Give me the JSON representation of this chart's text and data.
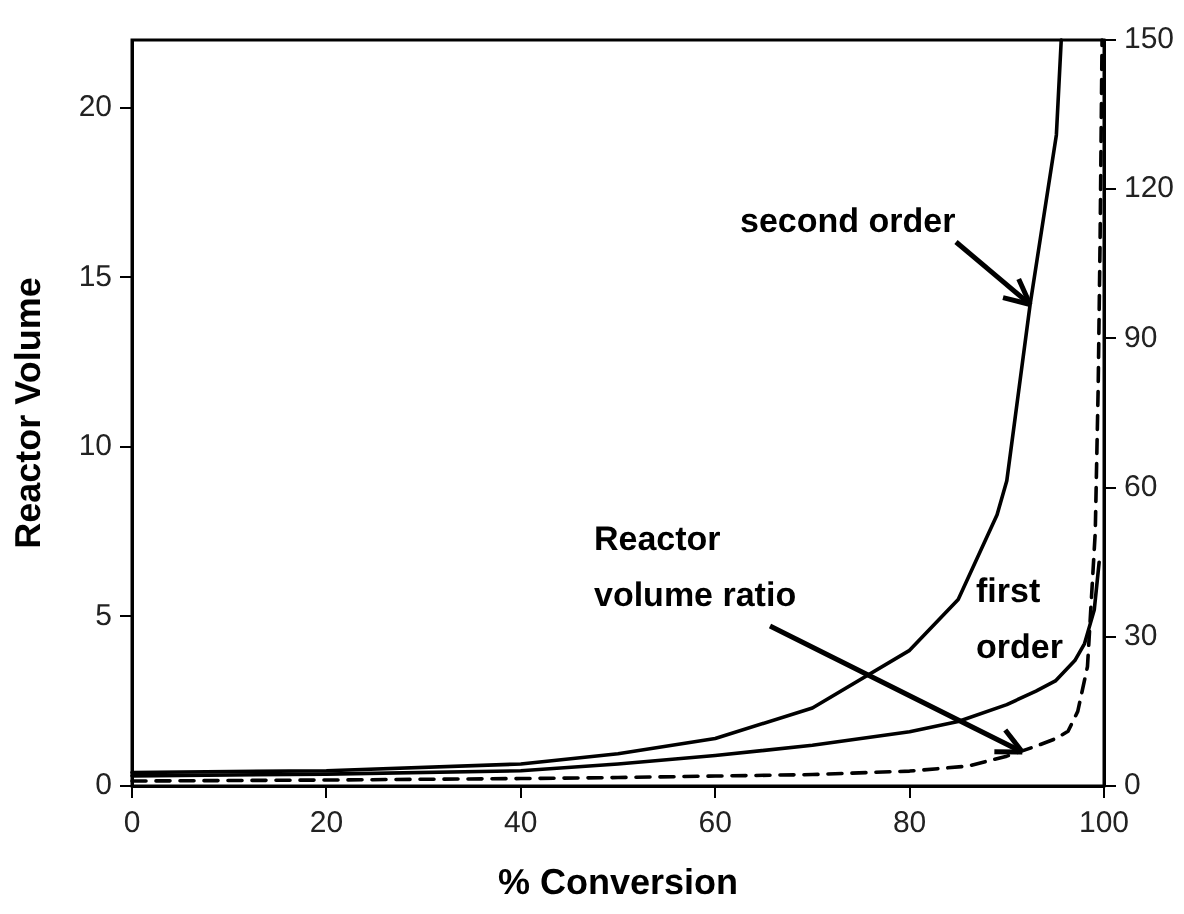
{
  "chart_data": {
    "type": "line",
    "xlabel": "% Conversion",
    "ylabel": "Reactor Volume",
    "xlim": [
      0,
      100
    ],
    "xticks": [
      0,
      20,
      40,
      60,
      80,
      100
    ],
    "ylim": [
      0,
      22
    ],
    "yticks": [
      0,
      5,
      10,
      15,
      20
    ],
    "y2lim": [
      0,
      150
    ],
    "y2ticks": [
      0,
      30,
      60,
      90,
      120,
      150
    ],
    "grid": false,
    "legend": false,
    "marker": "none",
    "series": [
      {
        "color": "#000000",
        "line_style": "solid",
        "x": [
          0,
          20,
          40,
          50,
          60,
          70,
          80,
          85,
          89,
          90,
          92.4,
          95.1,
          95.6
        ],
        "values": [
          0.4,
          0.45,
          0.65,
          0.95,
          1.4,
          2.3,
          4.0,
          5.5,
          8.0,
          9.0,
          14.2,
          19.2,
          22
        ]
      },
      {
        "color": "#000000",
        "line_style": "solid",
        "x": [
          0,
          20,
          40,
          50,
          60,
          70,
          80,
          85,
          90,
          93,
          95,
          97,
          98,
          98.5,
          99,
          99.5
        ],
        "values": [
          0.3,
          0.35,
          0.45,
          0.65,
          0.9,
          1.2,
          1.6,
          1.9,
          2.4,
          2.8,
          3.1,
          3.7,
          4.2,
          4.7,
          5.2,
          6.6
        ]
      },
      {
        "color": "#000000",
        "line_style": "dashed",
        "axis": "y2",
        "x": [
          0,
          20,
          40,
          50,
          60,
          70,
          80,
          86,
          90,
          93,
          95,
          96.3,
          97.3,
          98.3,
          99.1,
          99.4,
          99.6,
          99.8
        ],
        "values": [
          1,
          1.2,
          1.5,
          1.7,
          2,
          2.3,
          3,
          4,
          6,
          8,
          9.5,
          11,
          15,
          24,
          51,
          80,
          110,
          150
        ]
      }
    ],
    "annotations": [
      {
        "text": "second order",
        "x": 92.4,
        "y": 14.2
      },
      {
        "text": "Reactor\nvolume ratio",
        "x": 91.6,
        "y": 1.0
      },
      "first\norder"
    ]
  }
}
